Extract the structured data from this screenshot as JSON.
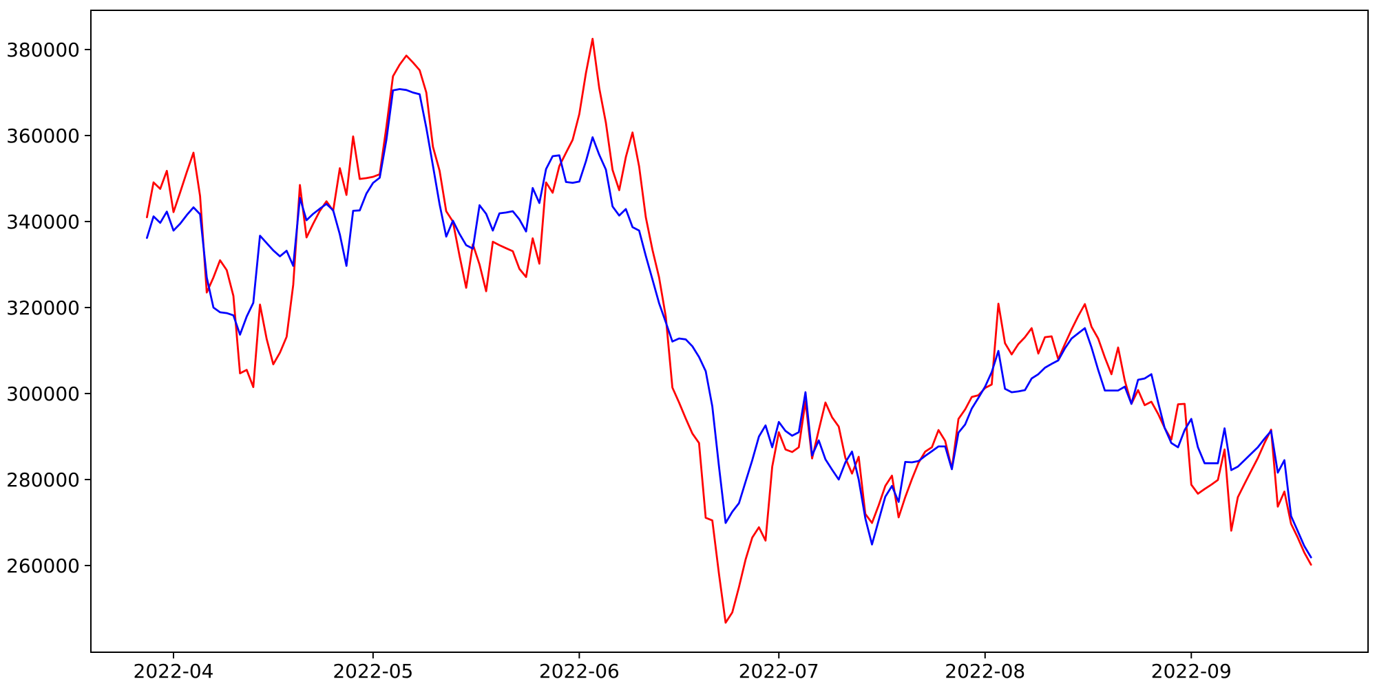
{
  "figure": {
    "background_color": "#ffffff",
    "plot_background_color": "#ffffff",
    "spine_color": "#000000",
    "tick_color": "#000000"
  },
  "chart_data": {
    "type": "line",
    "title": "",
    "xlabel": "",
    "ylabel": "",
    "grid": false,
    "legend_position": "none",
    "x_axis": {
      "epoch": "2022-04-01",
      "xlim_days": [
        -12.42,
        179.57
      ],
      "tick_labels": [
        "2022-04",
        "2022-05",
        "2022-06",
        "2022-07",
        "2022-08",
        "2022-09"
      ],
      "tick_day_offsets": [
        0,
        30,
        61,
        91,
        122,
        153
      ]
    },
    "y_axis": {
      "ylim": [
        239840,
        389120
      ],
      "ticks": [
        260000,
        280000,
        300000,
        320000,
        340000,
        360000,
        380000
      ],
      "tick_labels": [
        "260000",
        "280000",
        "300000",
        "320000",
        "340000",
        "360000",
        "380000"
      ]
    },
    "start_date": "2022-03-28",
    "frequency": "daily",
    "series": [
      {
        "name": "red",
        "color": "#ff0000",
        "values": [
          341000,
          349100,
          347600,
          351800,
          342200,
          346800,
          351500,
          356000,
          345900,
          323500,
          327000,
          331000,
          328700,
          322700,
          304700,
          305500,
          301500,
          320700,
          312700,
          306800,
          309500,
          313200,
          325300,
          348500,
          336300,
          339500,
          342500,
          344700,
          342500,
          352400,
          346200,
          359800,
          349900,
          350100,
          350400,
          351000,
          362000,
          373800,
          376500,
          378600,
          377000,
          375200,
          370000,
          357400,
          351800,
          342400,
          340000,
          332000,
          324600,
          334700,
          330000,
          323800,
          335300,
          334500,
          333800,
          333100,
          329000,
          327100,
          336100,
          330200,
          349100,
          346700,
          352900,
          356000,
          359000,
          365000,
          374500,
          382500,
          371000,
          363000,
          352000,
          347300,
          355000,
          360700,
          352800,
          341000,
          333400,
          327000,
          317900,
          301400,
          297900,
          294200,
          290700,
          288500,
          271100,
          270500,
          258000,
          246700,
          249100,
          255000,
          261400,
          266500,
          268900,
          265800,
          283000,
          291000,
          287000,
          286400,
          287500,
          298200,
          284900,
          291500,
          297900,
          294500,
          292300,
          285000,
          281400,
          285300,
          272000,
          269900,
          274000,
          278500,
          280900,
          271200,
          275900,
          280100,
          283900,
          286500,
          287500,
          291500,
          289000,
          282500,
          294100,
          296300,
          299200,
          299600,
          301300,
          302100,
          320900,
          311700,
          309100,
          311500,
          313100,
          315200,
          309300,
          313100,
          313300,
          308000,
          311500,
          314900,
          318000,
          320800,
          315500,
          312800,
          308400,
          304500,
          310700,
          303000,
          297600,
          300800,
          297300,
          298100,
          295300,
          292000,
          289300,
          297500,
          297600,
          278800,
          276700,
          277800,
          278800,
          279900,
          287000,
          268100,
          275900,
          279000,
          282000,
          285000,
          288500,
          291600,
          273700,
          277200,
          269700,
          266500,
          263000,
          260200
        ]
      },
      {
        "name": "blue",
        "color": "#0000ff",
        "values": [
          336200,
          341200,
          339700,
          342300,
          337900,
          339500,
          341500,
          343300,
          341700,
          327000,
          320000,
          318900,
          318700,
          318200,
          313700,
          317900,
          321100,
          336700,
          335000,
          333300,
          331900,
          333200,
          329700,
          345500,
          340300,
          341800,
          343000,
          344100,
          342600,
          337000,
          329700,
          342500,
          342600,
          346500,
          349000,
          350200,
          359000,
          370500,
          370800,
          370600,
          370000,
          369600,
          361800,
          353000,
          344000,
          336500,
          340200,
          337100,
          334500,
          333700,
          343800,
          341800,
          337900,
          341900,
          342100,
          342400,
          340500,
          337700,
          347800,
          344300,
          352200,
          355200,
          355400,
          349200,
          349000,
          349300,
          354000,
          359600,
          355500,
          352100,
          343500,
          341400,
          342900,
          338700,
          337900,
          332000,
          326500,
          321000,
          316600,
          312100,
          312800,
          312600,
          311000,
          308500,
          305200,
          297000,
          283000,
          269900,
          272500,
          274500,
          279500,
          284500,
          290000,
          292600,
          287500,
          293400,
          291300,
          290200,
          291000,
          300300,
          285600,
          289100,
          284700,
          282300,
          280000,
          284000,
          286500,
          280000,
          271000,
          264900,
          270500,
          276000,
          278500,
          274800,
          284100,
          284000,
          284300,
          285500,
          286600,
          287700,
          287700,
          282400,
          290900,
          292800,
          296500,
          299000,
          301600,
          305000,
          309900,
          301100,
          300300,
          300500,
          300800,
          303500,
          304500,
          306000,
          306900,
          307700,
          310500,
          312800,
          314000,
          315200,
          310700,
          305500,
          300700,
          300700,
          300700,
          301600,
          297600,
          303200,
          303500,
          304500,
          298000,
          292000,
          288500,
          287500,
          291500,
          294100,
          287500,
          283800,
          283800,
          283800,
          291900,
          282200,
          283000,
          284500,
          286000,
          287500,
          289500,
          291300,
          281600,
          284500,
          271500,
          268000,
          264500,
          261900
        ]
      }
    ]
  }
}
